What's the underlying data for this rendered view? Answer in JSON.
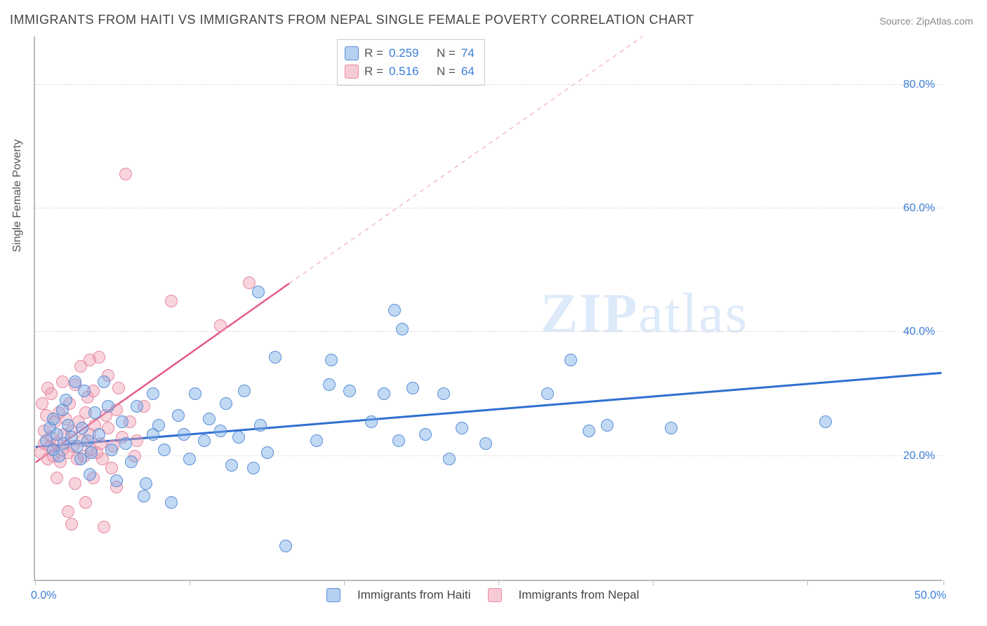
{
  "title": "IMMIGRANTS FROM HAITI VS IMMIGRANTS FROM NEPAL SINGLE FEMALE POVERTY CORRELATION CHART",
  "source": "Source: ZipAtlas.com",
  "watermark_bold": "ZIP",
  "watermark_rest": "atlas",
  "ylabel": "Single Female Poverty",
  "chart": {
    "type": "scatter",
    "xlim": [
      0,
      50
    ],
    "ylim": [
      0,
      88
    ],
    "yticks": [
      20,
      40,
      60,
      80
    ],
    "ytick_labels": [
      "20.0%",
      "40.0%",
      "60.0%",
      "80.0%"
    ],
    "xtick_positions": [
      0,
      8.5,
      17,
      25.5,
      34,
      42.5,
      50
    ],
    "x_left_label": "0.0%",
    "x_right_label": "50.0%",
    "background_color": "#ffffff",
    "axis_color": "#bbbbbb",
    "grid_color": "#dddddd",
    "marker_size": 18,
    "series": {
      "blue": {
        "name": "Immigrants from Haiti",
        "fill_color": "rgba(120,170,230,0.45)",
        "stroke_color": "#5b8fd6",
        "R": "0.259",
        "N": "74",
        "trend": {
          "x1": 0,
          "y1": 21.5,
          "x2": 50,
          "y2": 33.5,
          "color": "#2f6fd0",
          "width": 3
        },
        "points": [
          [
            0.6,
            22.5
          ],
          [
            0.8,
            24.5
          ],
          [
            1.0,
            21.0
          ],
          [
            1.2,
            23.5
          ],
          [
            1.0,
            26.0
          ],
          [
            1.3,
            20.0
          ],
          [
            1.5,
            27.5
          ],
          [
            1.6,
            22.0
          ],
          [
            1.8,
            25.0
          ],
          [
            2.0,
            23.0
          ],
          [
            1.7,
            29.0
          ],
          [
            2.3,
            21.5
          ],
          [
            2.5,
            19.5
          ],
          [
            2.6,
            24.5
          ],
          [
            2.9,
            22.5
          ],
          [
            2.2,
            32.0
          ],
          [
            3.1,
            20.5
          ],
          [
            3.3,
            27.0
          ],
          [
            3.5,
            23.5
          ],
          [
            2.7,
            30.5
          ],
          [
            4.2,
            21.0
          ],
          [
            4.5,
            16.0
          ],
          [
            4.8,
            25.5
          ],
          [
            5.0,
            22.0
          ],
          [
            5.3,
            19.0
          ],
          [
            5.6,
            28.0
          ],
          [
            3.8,
            32.0
          ],
          [
            6.1,
            15.5
          ],
          [
            6.5,
            23.5
          ],
          [
            6.8,
            25.0
          ],
          [
            7.1,
            21.0
          ],
          [
            6.0,
            13.5
          ],
          [
            7.9,
            26.5
          ],
          [
            8.2,
            23.5
          ],
          [
            8.5,
            19.5
          ],
          [
            8.8,
            30.0
          ],
          [
            12.3,
            46.5
          ],
          [
            9.3,
            22.5
          ],
          [
            9.6,
            26.0
          ],
          [
            7.5,
            12.5
          ],
          [
            10.2,
            24.0
          ],
          [
            10.5,
            28.5
          ],
          [
            10.8,
            18.5
          ],
          [
            11.2,
            23.0
          ],
          [
            11.5,
            30.5
          ],
          [
            12.0,
            18.0
          ],
          [
            12.4,
            25.0
          ],
          [
            12.8,
            20.5
          ],
          [
            13.2,
            36.0
          ],
          [
            16.2,
            31.5
          ],
          [
            13.8,
            5.5
          ],
          [
            15.5,
            22.5
          ],
          [
            16.3,
            35.5
          ],
          [
            17.3,
            30.5
          ],
          [
            18.5,
            25.5
          ],
          [
            19.2,
            30.0
          ],
          [
            20.0,
            22.5
          ],
          [
            19.8,
            43.5
          ],
          [
            20.2,
            40.5
          ],
          [
            20.8,
            31.0
          ],
          [
            21.5,
            23.5
          ],
          [
            22.8,
            19.5
          ],
          [
            23.5,
            24.5
          ],
          [
            24.8,
            22.0
          ],
          [
            22.5,
            30.0
          ],
          [
            28.2,
            30.0
          ],
          [
            29.5,
            35.5
          ],
          [
            30.5,
            24.0
          ],
          [
            31.5,
            25.0
          ],
          [
            35.0,
            24.5
          ],
          [
            43.5,
            25.5
          ],
          [
            6.5,
            30.0
          ],
          [
            3.0,
            17.0
          ],
          [
            4.0,
            28.0
          ]
        ]
      },
      "pink": {
        "name": "Immigrants from Nepal",
        "fill_color": "rgba(240,160,180,0.45)",
        "stroke_color": "#e68aa3",
        "R": "0.516",
        "N": "64",
        "trend_solid": {
          "x1": 0,
          "y1": 19.0,
          "x2": 14.0,
          "y2": 48.0,
          "color": "#e45a8a",
          "width": 2.5
        },
        "trend_dashed": {
          "x1": 14.0,
          "y1": 48.0,
          "x2": 33.5,
          "y2": 88.0,
          "color": "#f2b8c8",
          "width": 1.5
        },
        "points": [
          [
            0.3,
            20.5
          ],
          [
            0.5,
            22.0
          ],
          [
            0.5,
            24.0
          ],
          [
            0.7,
            19.5
          ],
          [
            0.8,
            21.5
          ],
          [
            0.6,
            26.5
          ],
          [
            0.9,
            23.0
          ],
          [
            1.0,
            20.0
          ],
          [
            0.4,
            28.5
          ],
          [
            1.1,
            25.5
          ],
          [
            1.2,
            22.0
          ],
          [
            0.7,
            31.0
          ],
          [
            1.4,
            19.0
          ],
          [
            1.3,
            27.0
          ],
          [
            1.5,
            21.0
          ],
          [
            1.6,
            23.5
          ],
          [
            1.7,
            26.0
          ],
          [
            1.8,
            20.5
          ],
          [
            0.9,
            30.0
          ],
          [
            2.0,
            24.0
          ],
          [
            2.1,
            21.5
          ],
          [
            1.9,
            28.5
          ],
          [
            2.3,
            19.5
          ],
          [
            2.4,
            25.5
          ],
          [
            2.2,
            31.5
          ],
          [
            2.6,
            22.5
          ],
          [
            2.7,
            20.0
          ],
          [
            2.8,
            27.0
          ],
          [
            1.5,
            32.0
          ],
          [
            3.0,
            23.5
          ],
          [
            3.1,
            21.0
          ],
          [
            2.9,
            29.5
          ],
          [
            3.3,
            25.0
          ],
          [
            2.5,
            34.5
          ],
          [
            3.6,
            22.0
          ],
          [
            3.7,
            19.5
          ],
          [
            3.2,
            30.5
          ],
          [
            4.0,
            24.5
          ],
          [
            3.5,
            36.0
          ],
          [
            4.3,
            21.5
          ],
          [
            4.5,
            27.5
          ],
          [
            3.0,
            35.5
          ],
          [
            4.8,
            23.0
          ],
          [
            2.2,
            15.5
          ],
          [
            5.2,
            25.5
          ],
          [
            1.8,
            11.0
          ],
          [
            5.6,
            22.5
          ],
          [
            1.2,
            16.5
          ],
          [
            6.0,
            28.0
          ],
          [
            4.2,
            18.0
          ],
          [
            2.8,
            12.5
          ],
          [
            3.2,
            16.5
          ],
          [
            5.0,
            65.5
          ],
          [
            3.4,
            20.5
          ],
          [
            3.9,
            26.5
          ],
          [
            2.0,
            9.0
          ],
          [
            7.5,
            45.0
          ],
          [
            3.8,
            8.5
          ],
          [
            11.8,
            48.0
          ],
          [
            10.2,
            41.0
          ],
          [
            4.5,
            15.0
          ],
          [
            4.6,
            31.0
          ],
          [
            5.5,
            20.0
          ],
          [
            4.0,
            33.0
          ]
        ]
      }
    }
  },
  "legend": {
    "r_label": "R =",
    "n_label": "N ="
  },
  "bottom_legend": {
    "blue_label": "Immigrants from Haiti",
    "pink_label": "Immigrants from Nepal"
  }
}
